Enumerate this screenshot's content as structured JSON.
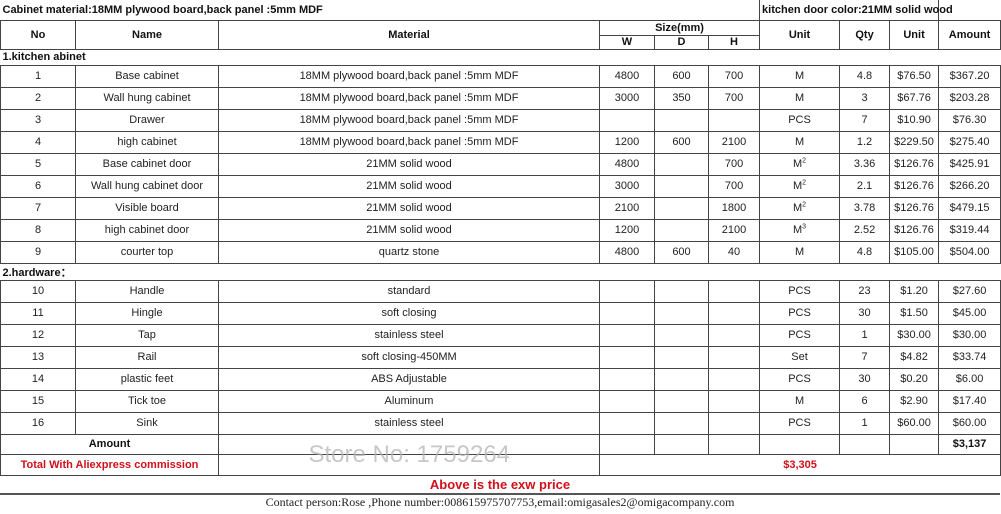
{
  "top": {
    "cabinet_material": "Cabinet material:18MM plywood board,back panel :5mm MDF",
    "door_color": "kitchen door color:21MM solid wood"
  },
  "headers": {
    "no": "No",
    "name": "Name",
    "material": "Material",
    "size": "Size(mm)",
    "w": "W",
    "d": "D",
    "h": "H",
    "unit": "Unit",
    "qty": "Qty",
    "unit_price": "Unit",
    "amount": "Amount"
  },
  "sections": [
    "1.kitchen abinet",
    "2.hardware："
  ],
  "rows": [
    {
      "no": "1",
      "name": "Base cabinet",
      "material": "18MM plywood board,back panel :5mm MDF",
      "w": "4800",
      "d": "600",
      "h": "700",
      "unit": "M",
      "sup": "",
      "qty": "4.8",
      "price": "$76.50",
      "amount": "$367.20"
    },
    {
      "no": "2",
      "name": "Wall hung cabinet",
      "material": "18MM plywood board,back panel :5mm MDF",
      "w": "3000",
      "d": "350",
      "h": "700",
      "unit": "M",
      "sup": "",
      "qty": "3",
      "price": "$67.76",
      "amount": "$203.28"
    },
    {
      "no": "3",
      "name": "Drawer",
      "material": "18MM plywood board,back panel :5mm MDF",
      "w": "",
      "d": "",
      "h": "",
      "unit": "PCS",
      "sup": "",
      "qty": "7",
      "price": "$10.90",
      "amount": "$76.30"
    },
    {
      "no": "4",
      "name": "high cabinet",
      "material": "18MM plywood board,back panel :5mm MDF",
      "w": "1200",
      "d": "600",
      "h": "2100",
      "unit": "M",
      "sup": "",
      "qty": "1.2",
      "price": "$229.50",
      "amount": "$275.40"
    },
    {
      "no": "5",
      "name": "Base cabinet door",
      "material": "21MM solid wood",
      "w": "4800",
      "d": "",
      "h": "700",
      "unit": "M",
      "sup": "2",
      "qty": "3.36",
      "price": "$126.76",
      "amount": "$425.91"
    },
    {
      "no": "6",
      "name": "Wall hung cabinet door",
      "material": "21MM solid wood",
      "w": "3000",
      "d": "",
      "h": "700",
      "unit": "M",
      "sup": "2",
      "qty": "2.1",
      "price": "$126.76",
      "amount": "$266.20"
    },
    {
      "no": "7",
      "name": "Visible board",
      "material": "21MM solid wood",
      "w": "2100",
      "d": "",
      "h": "1800",
      "unit": "M",
      "sup": "2",
      "qty": "3.78",
      "price": "$126.76",
      "amount": "$479.15"
    },
    {
      "no": "8",
      "name": "high cabinet door",
      "material": "21MM solid wood",
      "w": "1200",
      "d": "",
      "h": "2100",
      "unit": "M",
      "sup": "3",
      "qty": "2.52",
      "price": "$126.76",
      "amount": "$319.44"
    },
    {
      "no": "9",
      "name": "courter top",
      "material": "quartz stone",
      "w": "4800",
      "d": "600",
      "h": "40",
      "unit": "M",
      "sup": "",
      "qty": "4.8",
      "price": "$105.00",
      "amount": "$504.00"
    }
  ],
  "hardware": [
    {
      "no": "10",
      "name": "Handle",
      "material": "standard",
      "w": "",
      "d": "",
      "h": "",
      "unit": "PCS",
      "sup": "",
      "qty": "23",
      "price": "$1.20",
      "amount": "$27.60"
    },
    {
      "no": "11",
      "name": "Hingle",
      "material": "soft closing",
      "w": "",
      "d": "",
      "h": "",
      "unit": "PCS",
      "sup": "",
      "qty": "30",
      "price": "$1.50",
      "amount": "$45.00"
    },
    {
      "no": "12",
      "name": "Tap",
      "material": "stainless steel",
      "w": "",
      "d": "",
      "h": "",
      "unit": "PCS",
      "sup": "",
      "qty": "1",
      "price": "$30.00",
      "amount": "$30.00"
    },
    {
      "no": "13",
      "name": "Rail",
      "material": "soft closing-450MM",
      "w": "",
      "d": "",
      "h": "",
      "unit": "Set",
      "sup": "",
      "qty": "7",
      "price": "$4.82",
      "amount": "$33.74"
    },
    {
      "no": "14",
      "name": "plastic feet",
      "material": "ABS Adjustable",
      "w": "",
      "d": "",
      "h": "",
      "unit": "PCS",
      "sup": "",
      "qty": "30",
      "price": "$0.20",
      "amount": "$6.00"
    },
    {
      "no": "15",
      "name": "Tick toe",
      "material": "Aluminum",
      "w": "",
      "d": "",
      "h": "",
      "unit": "M",
      "sup": "",
      "qty": "6",
      "price": "$2.90",
      "amount": "$17.40"
    },
    {
      "no": "16",
      "name": "Sink",
      "material": "stainless steel",
      "w": "",
      "d": "",
      "h": "",
      "unit": "PCS",
      "sup": "",
      "qty": "1",
      "price": "$60.00",
      "amount": "$60.00"
    }
  ],
  "totals": {
    "amount_label": "Amount",
    "amount_value": "$3,137",
    "commission_label": "Total With Aliexpress commission",
    "commission_value": "$3,305"
  },
  "footer": {
    "exw": "Above is the exw price",
    "contact": "Contact person:Rose ,Phone number:008615975707753,email:omigasales2@omigacompany.com"
  },
  "watermark": "Store No: 1759264",
  "colors": {
    "red": "#d0101a"
  }
}
